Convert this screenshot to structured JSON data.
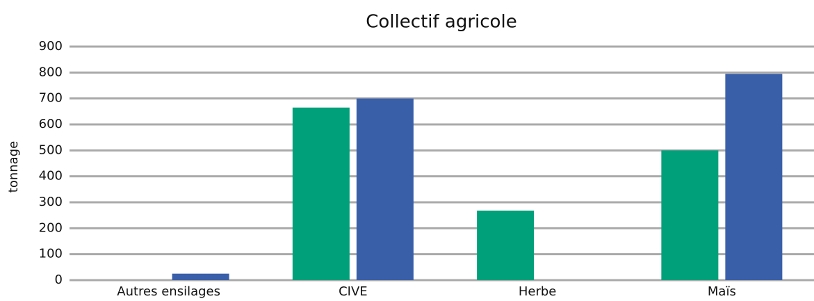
{
  "chart_data": {
    "type": "bar",
    "title": "Collectif agricole",
    "y_label": "tonnage",
    "categories": [
      "Autres ensilages",
      "CIVE",
      "Herbe",
      "Maïs"
    ],
    "series": [
      {
        "color": "#00a07a",
        "values": [
          0,
          665,
          268,
          500
        ]
      },
      {
        "color": "#3a5fa9",
        "values": [
          25,
          700,
          0,
          795
        ]
      }
    ],
    "ylim": [
      0,
      900
    ],
    "yticks": [
      0,
      100,
      200,
      300,
      400,
      500,
      600,
      700,
      800,
      900
    ],
    "grid": true
  }
}
